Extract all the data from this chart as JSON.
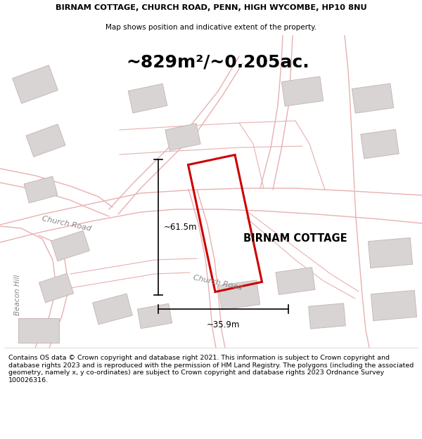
{
  "title_line1": "BIRNAM COTTAGE, CHURCH ROAD, PENN, HIGH WYCOMBE, HP10 8NU",
  "title_line2": "Map shows position and indicative extent of the property.",
  "area_text": "~829m²/~0.205ac.",
  "property_label": "BIRNAM COTTAGE",
  "dim_height": "~61.5m",
  "dim_width": "~35.9m",
  "road_label_upper": "Church Road",
  "road_label_lower": "Church Road",
  "road_label_left": "Beacon Hill",
  "footer_text": "Contains OS data © Crown copyright and database right 2021. This information is subject to Crown copyright and database rights 2023 and is reproduced with the permission of HM Land Registry. The polygons (including the associated geometry, namely x, y co-ordinates) are subject to Crown copyright and database rights 2023 Ordnance Survey 100026316.",
  "map_bg": "#f7f4f4",
  "highlight_color": "#cc0000",
  "road_line_color": "#e8b0b0",
  "road_fill_color": "#f0d8d8",
  "building_fill": "#d8d4d4",
  "building_edge": "#c8b8b8",
  "text_color": "#333333"
}
